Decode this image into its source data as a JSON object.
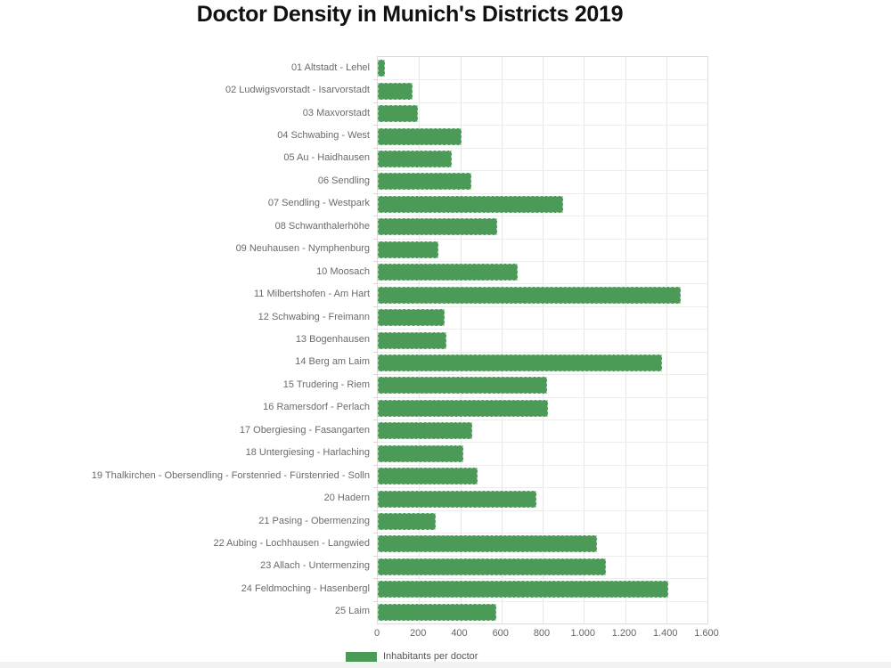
{
  "page": {
    "background": "#ffffff",
    "bottom_strip_color": "#f0f3ef"
  },
  "chart_data": {
    "type": "bar",
    "orientation": "horizontal",
    "title": "Doctor Density in Munich's Districts 2019",
    "legend": {
      "label": "Inhabitants per doctor",
      "position": "bottom-center"
    },
    "xlabel": "",
    "ylabel": "",
    "xlim": [
      0,
      1600
    ],
    "grid": true,
    "bar_color": "#4c9a57",
    "x_tick_values": [
      0,
      200,
      400,
      600,
      800,
      1000,
      1200,
      1400,
      1600
    ],
    "x_tick_labels": [
      "0",
      "200",
      "400",
      "600",
      "800",
      "1.000",
      "1.200",
      "1.400",
      "1.600"
    ],
    "categories": [
      "01 Altstadt - Lehel",
      "02 Ludwigsvorstadt - Isarvorstadt",
      "03 Maxvorstadt",
      "04 Schwabing - West",
      "05 Au - Haidhausen",
      "06 Sendling",
      "07 Sendling - Westpark",
      "08 Schwanthalerhöhe",
      "09 Neuhausen - Nymphenburg",
      "10 Moosach",
      "11 Milbertshofen - Am Hart",
      "12 Schwabing - Freimann",
      "13 Bogenhausen",
      "14 Berg am Laim",
      "15 Trudering - Riem",
      "16 Ramersdorf - Perlach",
      "17 Obergiesing - Fasangarten",
      "18 Untergiesing - Harlaching",
      "19 Thalkirchen - Obersendling - Forstenried - Fürstenried - Solln",
      "20 Hadern",
      "21 Pasing - Obermenzing",
      "22 Aubing - Lochhausen - Langwied",
      "23 Allach - Untermenzing",
      "24 Feldmoching - Hasenbergl",
      "25 Laim"
    ],
    "values": [
      35,
      170,
      195,
      405,
      360,
      455,
      900,
      580,
      295,
      680,
      1470,
      325,
      335,
      1380,
      820,
      825,
      460,
      415,
      485,
      770,
      280,
      1065,
      1105,
      1410,
      575
    ]
  }
}
